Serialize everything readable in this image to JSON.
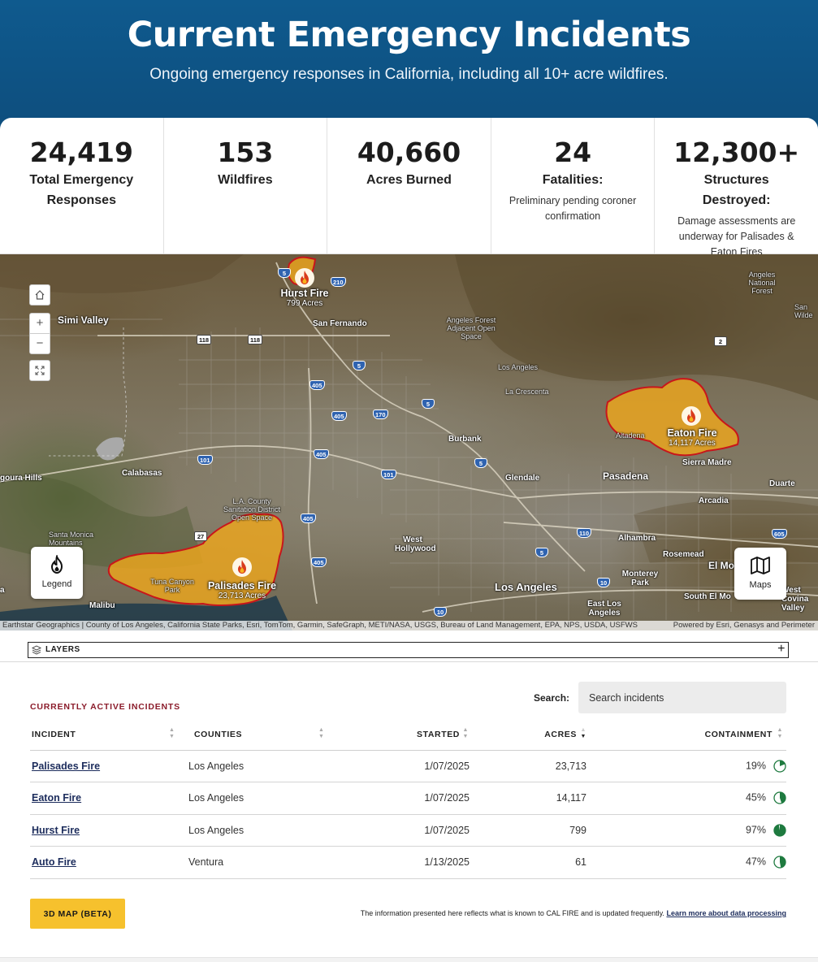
{
  "header": {
    "title": "Current Emergency Incidents",
    "subtitle": "Ongoing emergency responses in California, including all 10+ acre wildfires."
  },
  "stats": [
    {
      "value": "24,419",
      "label": "Total Emergency Responses",
      "note": ""
    },
    {
      "value": "153",
      "label": "Wildfires",
      "note": ""
    },
    {
      "value": "40,660",
      "label": "Acres Burned",
      "note": ""
    },
    {
      "value": "24",
      "label": "Fatalities:",
      "note": "Preliminary pending coroner confirmation"
    },
    {
      "value": "12,300+",
      "label": "Structures Destroyed:",
      "note": "Damage assessments are underway for Palisades & Eaton Fires"
    }
  ],
  "map": {
    "fires": [
      {
        "name": "Hurst Fire",
        "acres": "799 Acres"
      },
      {
        "name": "Eaton Fire",
        "acres": "14,117 Acres"
      },
      {
        "name": "Palisades Fire",
        "acres": "23,713 Acres"
      }
    ],
    "places": {
      "simi_valley": "Simi Valley",
      "san_fernando": "San Fernando",
      "angeles_forest": "Angeles Forest Adjacent Open Space",
      "los_angeles_n": "Los Angeles",
      "la_crescenta": "La Crescenta",
      "altadena": "Altadena",
      "sierra_madre": "Sierra Madre",
      "burbank": "Burbank",
      "glendale": "Glendale",
      "pasadena": "Pasadena",
      "duarte": "Duarte",
      "arcadia": "Arcadia",
      "calabasas": "Calabasas",
      "agoura_hills": "goura Hills",
      "la_county": "L.A. County Sanitation District Open Space",
      "santa_monica": "Santa Monica Mountains",
      "west_hollywood": "West Hollywood",
      "alhambra": "Alhambra",
      "rosemead": "Rosemead",
      "el_monte": "El Mo",
      "monterey_park": "Monterey Park",
      "los_angeles": "Los Angeles",
      "east_los_angeles": "East Los Angeles",
      "south_el_monte": "South El Mo",
      "tuna_canyon": "Tuna Canyon Park",
      "malibu": "Malibu",
      "angeles_national_forest": "Angeles National Forest",
      "san_wilder": "San Wilde",
      "west_covina": "West Covina Valley",
      "a": "a"
    },
    "shields": [
      "5",
      "210",
      "118",
      "118",
      "5",
      "405",
      "405",
      "170",
      "5",
      "2",
      "101",
      "405",
      "101",
      "5",
      "27",
      "405",
      "405",
      "110",
      "5",
      "10",
      "10",
      "605"
    ],
    "controls": {
      "legend": "Legend",
      "maps": "Maps"
    },
    "attribution": "Earthstar Geographics | County of Los Angeles, California State Parks, Esri, TomTom, Garmin, SafeGraph, METI/NASA, USGS, Bureau of Land Management, EPA, NPS, USDA, USFWS",
    "powered_by": "Powered by Esri, Genasys and Perimeter"
  },
  "layers": {
    "label": "LAYERS"
  },
  "incidents": {
    "section_title": "CURRENTLY ACTIVE INCIDENTS",
    "search_label": "Search:",
    "search_placeholder": "Search incidents",
    "columns": {
      "incident": "INCIDENT",
      "counties": "COUNTIES",
      "started": "STARTED",
      "acres": "ACRES",
      "containment": "CONTAINMENT"
    },
    "rows": [
      {
        "name": "Palisades Fire",
        "county": "Los Angeles",
        "started": "1/07/2025",
        "acres": "23,713",
        "containment": "19%",
        "pct": 19
      },
      {
        "name": "Eaton Fire",
        "county": "Los Angeles",
        "started": "1/07/2025",
        "acres": "14,117",
        "containment": "45%",
        "pct": 45
      },
      {
        "name": "Hurst Fire",
        "county": "Los Angeles",
        "started": "1/07/2025",
        "acres": "799",
        "containment": "97%",
        "pct": 97
      },
      {
        "name": "Auto Fire",
        "county": "Ventura",
        "started": "1/13/2025",
        "acres": "61",
        "containment": "47%",
        "pct": 47
      }
    ]
  },
  "footer": {
    "button": "3D MAP (BETA)",
    "disclaimer": "The information presented here reflects what is known to CAL FIRE and is updated frequently.",
    "link": "Learn more about data processing"
  },
  "colors": {
    "header_blue": "#0e5283",
    "accent_red": "#8b1c2b",
    "button_yellow": "#f6c12d",
    "containment_green": "#1e7a3f",
    "fire_fill": "#f0a81c",
    "fire_border": "#c8161b"
  }
}
